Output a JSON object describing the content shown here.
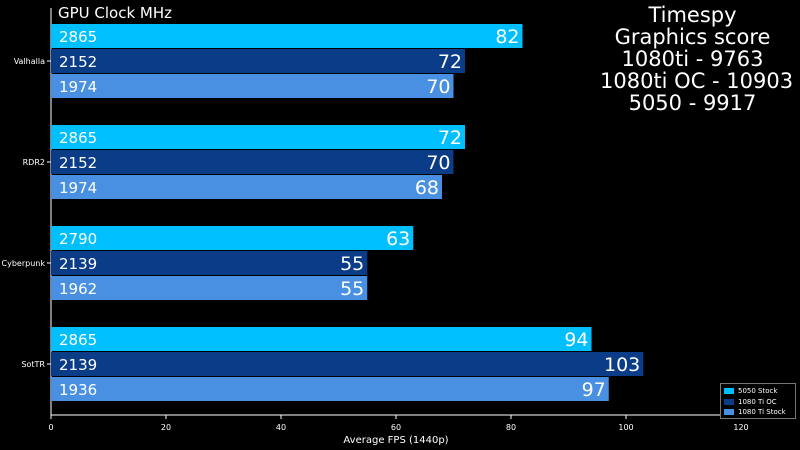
{
  "heading": "GPU Clock MHz",
  "score_panel": {
    "lines": [
      "Timespy",
      "Graphics score",
      "1080ti - 9763",
      "1080ti OC - 10903",
      "5050 - 9917"
    ]
  },
  "colors": {
    "background": "#000000",
    "series": [
      "#00BFFF",
      "#0B3C87",
      "#4A90E2"
    ],
    "axis": "#FFFFFF"
  },
  "chart_data": {
    "type": "bar",
    "orientation": "horizontal",
    "categories": [
      "Valhalla",
      "RDR2",
      "Cyberpunk",
      "SotTR"
    ],
    "series": [
      {
        "name": "5050 Stock",
        "values": [
          82,
          72,
          63,
          94
        ],
        "clocks": [
          "2865",
          "2865",
          "2790",
          "2865"
        ]
      },
      {
        "name": "1080 Ti OC",
        "values": [
          72,
          70,
          55,
          103
        ],
        "clocks": [
          "2152",
          "2152",
          "2139",
          "2139"
        ]
      },
      {
        "name": "1080 Ti Stock",
        "values": [
          70,
          68,
          55,
          97
        ],
        "clocks": [
          "1974",
          "1974",
          "1962",
          "1936"
        ]
      }
    ],
    "xlabel": "Average FPS (1440p)",
    "xlim": [
      0,
      120
    ],
    "xticks": [
      0,
      20,
      40,
      60,
      80,
      100,
      120
    ],
    "legend_position": "bottom-right",
    "grid": false
  }
}
